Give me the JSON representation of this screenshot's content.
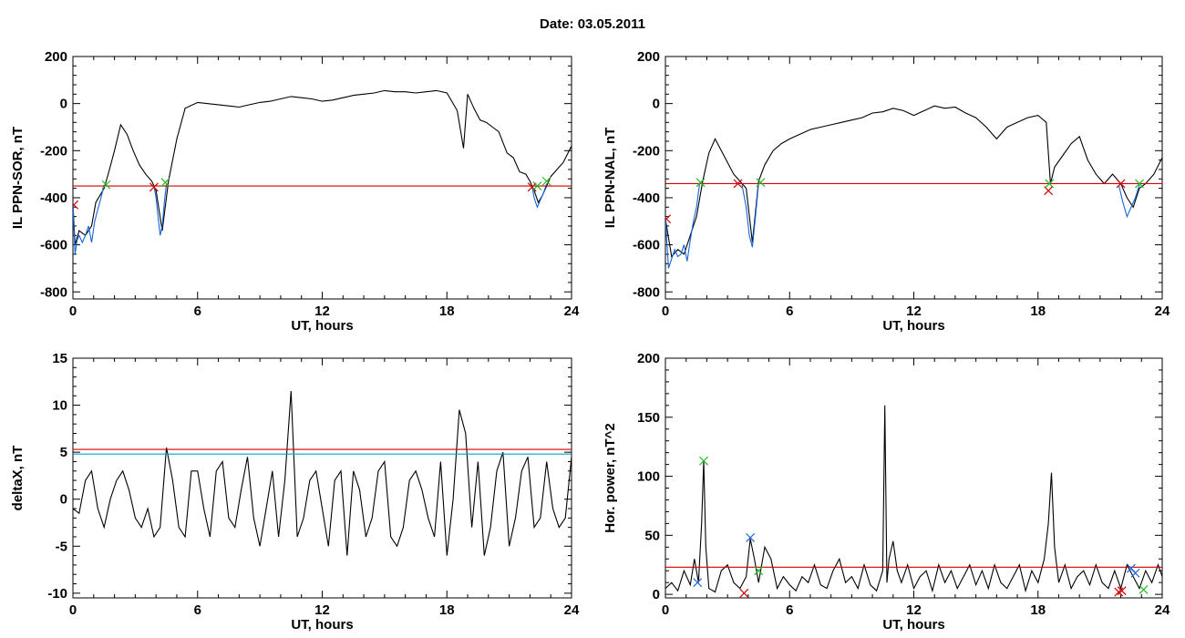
{
  "title": "Date:  03.05.2011",
  "chart_data": [
    {
      "id": "panel-ppn-sor",
      "type": "line",
      "xlabel": "UT, hours",
      "ylabel": "IL PPN-SOR, nT",
      "xlim": [
        0,
        24
      ],
      "ylim": [
        -830,
        200
      ],
      "xticks": [
        0,
        6,
        12,
        18,
        24
      ],
      "yticks": [
        -800,
        -600,
        -400,
        -200,
        0,
        200
      ],
      "grid": false,
      "series": [
        {
          "color": "#000000",
          "x": [
            0,
            0.1,
            0.3,
            0.6,
            0.9,
            1.1,
            1.5,
            1.7,
            2.0,
            2.3,
            2.6,
            2.9,
            3.2,
            3.5,
            3.8,
            4.0,
            4.3,
            4.6,
            5.0,
            5.4,
            6.0,
            6.5,
            7.0,
            7.5,
            8.0,
            8.5,
            9.0,
            9.5,
            10.0,
            10.5,
            11.0,
            11.5,
            12.0,
            12.5,
            13.0,
            13.5,
            14.0,
            14.5,
            15.0,
            15.5,
            16.0,
            16.5,
            17.0,
            17.5,
            18.0,
            18.5,
            18.8,
            19.0,
            19.3,
            19.6,
            19.9,
            20.2,
            20.5,
            20.9,
            21.2,
            21.5,
            21.8,
            22.0,
            22.2,
            22.4,
            22.6,
            22.8,
            23.0,
            23.3,
            23.6,
            24.0
          ],
          "y": [
            -420,
            -600,
            -540,
            -560,
            -520,
            -420,
            -360,
            -300,
            -200,
            -90,
            -130,
            -200,
            -260,
            -300,
            -330,
            -370,
            -540,
            -330,
            -150,
            -20,
            5,
            0,
            -5,
            -10,
            -15,
            -5,
            5,
            10,
            20,
            30,
            25,
            20,
            10,
            15,
            25,
            35,
            40,
            45,
            55,
            50,
            50,
            45,
            50,
            55,
            45,
            -30,
            -190,
            40,
            -20,
            -70,
            -80,
            -100,
            -120,
            -210,
            -230,
            -290,
            -300,
            -330,
            -370,
            -420,
            -390,
            -350,
            -310,
            -280,
            -250,
            -180
          ]
        },
        {
          "color": "#1565d8",
          "x": [
            0,
            0.1,
            0.2,
            0.3,
            0.45,
            0.6,
            0.75,
            0.9,
            1.05,
            1.2,
            1.35,
            1.5
          ],
          "y": [
            -420,
            -640,
            -580,
            -560,
            -590,
            -560,
            -520,
            -590,
            -500,
            -450,
            -400,
            -345
          ]
        },
        {
          "color": "#1565d8",
          "x": [
            3.9,
            4.0,
            4.1,
            4.2,
            4.3,
            4.4,
            4.5
          ],
          "y": [
            -350,
            -400,
            -480,
            -560,
            -520,
            -420,
            -340
          ]
        },
        {
          "color": "#1565d8",
          "x": [
            22.1,
            22.2,
            22.35,
            22.5,
            22.65,
            22.8
          ],
          "y": [
            -350,
            -400,
            -440,
            -410,
            -380,
            -340
          ]
        }
      ],
      "hlines": [
        {
          "y": -350,
          "color": "#d00000"
        }
      ],
      "markers": [
        {
          "x": 0.05,
          "y": -430,
          "color": "#d00000"
        },
        {
          "x": 1.6,
          "y": -345,
          "color": "#22bb22"
        },
        {
          "x": 3.9,
          "y": -355,
          "color": "#d00000"
        },
        {
          "x": 4.45,
          "y": -335,
          "color": "#22bb22"
        },
        {
          "x": 22.1,
          "y": -355,
          "color": "#d00000"
        },
        {
          "x": 22.35,
          "y": -350,
          "color": "#22bb22"
        },
        {
          "x": 22.8,
          "y": -330,
          "color": "#22bb22"
        }
      ]
    },
    {
      "id": "panel-ppn-nal",
      "type": "line",
      "xlabel": "UT, hours",
      "ylabel": "IL PPN-NAL, nT",
      "xlim": [
        0,
        24
      ],
      "ylim": [
        -830,
        200
      ],
      "xticks": [
        0,
        6,
        12,
        18,
        24
      ],
      "yticks": [
        -800,
        -600,
        -400,
        -200,
        0,
        200
      ],
      "grid": false,
      "series": [
        {
          "color": "#000000",
          "x": [
            0,
            0.3,
            0.6,
            0.9,
            1.2,
            1.5,
            1.8,
            2.1,
            2.4,
            2.7,
            3.0,
            3.3,
            3.6,
            3.9,
            4.2,
            4.5,
            4.8,
            5.2,
            5.6,
            6.0,
            6.5,
            7.0,
            7.5,
            8.0,
            8.5,
            9.0,
            9.5,
            10.0,
            10.5,
            11.0,
            11.5,
            12.0,
            12.5,
            13.0,
            13.5,
            14.0,
            14.5,
            15.0,
            15.5,
            16.0,
            16.5,
            17.0,
            17.5,
            18.0,
            18.4,
            18.6,
            18.8,
            19.2,
            19.6,
            20.0,
            20.4,
            20.8,
            21.2,
            21.6,
            22.0,
            22.3,
            22.6,
            22.9,
            23.2,
            23.6,
            24.0
          ],
          "y": [
            -490,
            -650,
            -620,
            -640,
            -560,
            -480,
            -330,
            -210,
            -150,
            -200,
            -250,
            -300,
            -330,
            -360,
            -590,
            -330,
            -260,
            -200,
            -170,
            -150,
            -130,
            -110,
            -100,
            -90,
            -80,
            -70,
            -60,
            -40,
            -35,
            -20,
            -30,
            -50,
            -30,
            -10,
            -20,
            -15,
            -40,
            -60,
            -100,
            -150,
            -100,
            -80,
            -60,
            -50,
            -80,
            -340,
            -270,
            -220,
            -170,
            -140,
            -240,
            -300,
            -340,
            -300,
            -340,
            -400,
            -440,
            -360,
            -340,
            -300,
            -230
          ]
        },
        {
          "color": "#1565d8",
          "x": [
            0,
            0.15,
            0.3,
            0.45,
            0.6,
            0.75,
            0.9,
            1.05,
            1.2,
            1.35,
            1.5,
            1.65
          ],
          "y": [
            -490,
            -700,
            -660,
            -620,
            -650,
            -640,
            -600,
            -670,
            -580,
            -500,
            -440,
            -340
          ]
        },
        {
          "color": "#1565d8",
          "x": [
            3.7,
            3.9,
            4.05,
            4.2,
            4.35,
            4.5
          ],
          "y": [
            -345,
            -440,
            -560,
            -610,
            -480,
            -340
          ]
        },
        {
          "color": "#1565d8",
          "x": [
            21.9,
            22.1,
            22.3,
            22.5,
            22.7,
            22.9
          ],
          "y": [
            -345,
            -420,
            -480,
            -440,
            -400,
            -345
          ]
        }
      ],
      "hlines": [
        {
          "y": -340,
          "color": "#d00000"
        }
      ],
      "markers": [
        {
          "x": 0.05,
          "y": -490,
          "color": "#d00000"
        },
        {
          "x": 1.7,
          "y": -335,
          "color": "#22bb22"
        },
        {
          "x": 3.5,
          "y": -340,
          "color": "#d00000"
        },
        {
          "x": 4.6,
          "y": -335,
          "color": "#22bb22"
        },
        {
          "x": 18.5,
          "y": -370,
          "color": "#d00000"
        },
        {
          "x": 18.55,
          "y": -340,
          "color": "#22bb22"
        },
        {
          "x": 22.0,
          "y": -340,
          "color": "#d00000"
        },
        {
          "x": 22.9,
          "y": -340,
          "color": "#22bb22"
        }
      ]
    },
    {
      "id": "panel-deltax",
      "type": "line",
      "xlabel": "UT, hours",
      "ylabel": "deltaX, nT",
      "xlim": [
        0,
        24
      ],
      "ylim": [
        -10.5,
        15
      ],
      "xticks": [
        0,
        6,
        12,
        18,
        24
      ],
      "yticks": [
        -10,
        -5,
        0,
        5,
        10,
        15
      ],
      "grid": false,
      "series": [
        {
          "color": "#000000",
          "x": [
            0,
            0.3,
            0.6,
            0.9,
            1.2,
            1.5,
            1.8,
            2.1,
            2.4,
            2.7,
            3.0,
            3.3,
            3.6,
            3.9,
            4.2,
            4.5,
            4.8,
            5.1,
            5.4,
            5.7,
            6.0,
            6.3,
            6.6,
            6.9,
            7.2,
            7.5,
            7.8,
            8.1,
            8.4,
            8.7,
            9.0,
            9.3,
            9.6,
            9.9,
            10.2,
            10.5,
            10.8,
            11.1,
            11.4,
            11.7,
            12.0,
            12.3,
            12.6,
            12.9,
            13.2,
            13.5,
            13.8,
            14.1,
            14.4,
            14.7,
            15.0,
            15.3,
            15.6,
            15.9,
            16.2,
            16.5,
            16.8,
            17.1,
            17.4,
            17.7,
            18.0,
            18.3,
            18.6,
            18.9,
            19.2,
            19.5,
            19.8,
            20.1,
            20.4,
            20.7,
            21.0,
            21.3,
            21.6,
            21.9,
            22.2,
            22.5,
            22.8,
            23.1,
            23.4,
            23.7,
            24.0
          ],
          "y": [
            -1,
            -1.5,
            2,
            3,
            -1,
            -3,
            0,
            2,
            3,
            1,
            -2,
            -3,
            -1,
            -4,
            -3,
            5.5,
            2,
            -3,
            -4,
            3,
            3,
            -1,
            -4,
            3,
            4,
            -2,
            -3,
            1,
            4.5,
            -2,
            -5,
            -1,
            3,
            -4,
            2,
            11.5,
            -4,
            -2,
            2,
            3,
            -1,
            -5,
            2,
            3,
            -6,
            3,
            1,
            -4,
            -2,
            3,
            4,
            -4,
            -5,
            -3,
            2,
            3,
            1,
            -2,
            -4,
            4,
            -6,
            0,
            9.5,
            7,
            -3,
            4,
            -6,
            -3,
            3,
            5,
            -5,
            -2,
            3,
            4.5,
            -3,
            -2,
            4,
            -1,
            -3,
            -2,
            4.5
          ]
        }
      ],
      "hlines": [
        {
          "y": 5.3,
          "color": "#d00000"
        },
        {
          "y": 4.8,
          "color": "#00a0c8"
        }
      ],
      "markers": []
    },
    {
      "id": "panel-hor-power",
      "type": "line",
      "xlabel": "UT, hours",
      "ylabel": "Hor. power, nT^2",
      "xlim": [
        0,
        24
      ],
      "ylim": [
        -3,
        200
      ],
      "xticks": [
        0,
        6,
        12,
        18,
        24
      ],
      "yticks": [
        0,
        50,
        100,
        150,
        200
      ],
      "grid": false,
      "series": [
        {
          "color": "#000000",
          "x": [
            0,
            0.3,
            0.6,
            0.9,
            1.2,
            1.4,
            1.6,
            1.75,
            1.85,
            1.95,
            2.1,
            2.4,
            2.7,
            3.0,
            3.3,
            3.6,
            3.9,
            4.1,
            4.3,
            4.5,
            4.8,
            5.1,
            5.4,
            5.7,
            6.0,
            6.3,
            6.6,
            6.9,
            7.2,
            7.5,
            7.8,
            8.1,
            8.4,
            8.7,
            9.0,
            9.3,
            9.6,
            9.9,
            10.2,
            10.5,
            10.6,
            10.7,
            10.8,
            11.0,
            11.2,
            11.4,
            11.7,
            12.0,
            12.3,
            12.6,
            12.9,
            13.2,
            13.5,
            13.8,
            14.1,
            14.4,
            14.7,
            15.0,
            15.3,
            15.6,
            15.9,
            16.2,
            16.5,
            16.8,
            17.1,
            17.4,
            17.7,
            18.0,
            18.3,
            18.5,
            18.65,
            18.8,
            19.0,
            19.3,
            19.6,
            19.9,
            20.2,
            20.5,
            20.8,
            21.1,
            21.4,
            21.7,
            22.0,
            22.3,
            22.6,
            22.9,
            23.2,
            23.5,
            23.8,
            24.0
          ],
          "y": [
            5,
            10,
            3,
            20,
            8,
            30,
            10,
            60,
            113,
            40,
            5,
            2,
            20,
            25,
            10,
            5,
            15,
            47,
            30,
            10,
            40,
            30,
            5,
            15,
            8,
            3,
            15,
            10,
            25,
            8,
            5,
            20,
            30,
            10,
            15,
            5,
            25,
            8,
            3,
            20,
            160,
            10,
            30,
            45,
            20,
            10,
            25,
            5,
            15,
            20,
            3,
            25,
            10,
            20,
            5,
            15,
            25,
            8,
            20,
            5,
            25,
            10,
            5,
            15,
            25,
            3,
            20,
            10,
            30,
            60,
            103,
            40,
            10,
            25,
            5,
            15,
            20,
            8,
            25,
            10,
            5,
            20,
            5,
            25,
            15,
            5,
            20,
            10,
            25,
            15
          ]
        }
      ],
      "hlines": [
        {
          "y": 23,
          "color": "#d00000"
        }
      ],
      "markers": [
        {
          "x": 1.55,
          "y": 10,
          "color": "#2266dd"
        },
        {
          "x": 1.85,
          "y": 113,
          "color": "#22bb22"
        },
        {
          "x": 3.8,
          "y": 1,
          "color": "#d00000"
        },
        {
          "x": 4.1,
          "y": 48,
          "color": "#2266dd"
        },
        {
          "x": 4.5,
          "y": 20,
          "color": "#22bb22"
        },
        {
          "x": 21.9,
          "y": 2,
          "color": "#d00000"
        },
        {
          "x": 22.05,
          "y": 3,
          "color": "#d00000"
        },
        {
          "x": 22.5,
          "y": 22,
          "color": "#2266dd"
        },
        {
          "x": 22.7,
          "y": 18,
          "color": "#2266dd"
        },
        {
          "x": 23.1,
          "y": 4,
          "color": "#22bb22"
        }
      ]
    }
  ]
}
